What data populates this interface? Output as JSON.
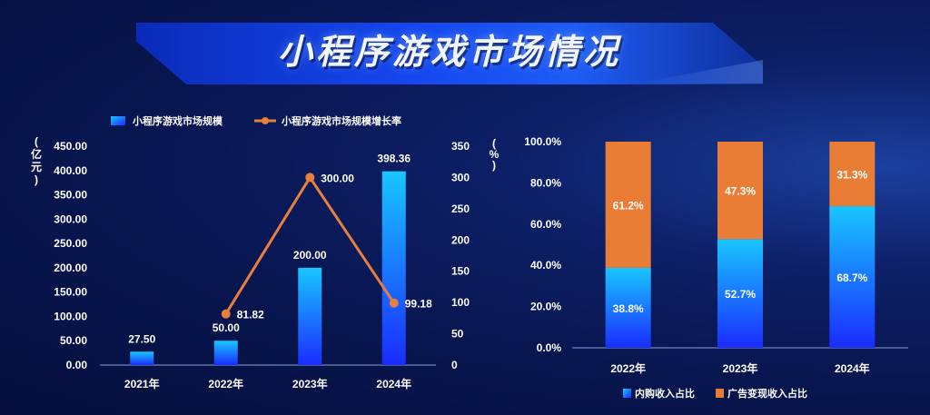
{
  "title": "小程序游戏市场情况",
  "colors": {
    "bar_top": "#19c6ff",
    "bar_bottom": "#1a2cff",
    "line": "#e87f3a",
    "orange": "#ea7d36",
    "axis": "#8aa0d8",
    "text": "#ffffff"
  },
  "chart_data": [
    {
      "type": "bar",
      "legend": [
        "小程序游戏市场规模",
        "小程序游戏市场规模增长率"
      ],
      "categories": [
        "2021年",
        "2022年",
        "2023年",
        "2024年"
      ],
      "y_left": {
        "unit_label": "(亿元)",
        "ticks": [
          "0.00",
          "50.00",
          "100.00",
          "150.00",
          "200.00",
          "250.00",
          "300.00",
          "350.00",
          "400.00",
          "450.00"
        ],
        "ylim": [
          0,
          450
        ]
      },
      "y_right": {
        "unit_label": "(%)",
        "ticks": [
          "0",
          "50",
          "100",
          "150",
          "200",
          "250",
          "300",
          "350"
        ],
        "ylim": [
          0,
          350
        ]
      },
      "series": [
        {
          "name": "小程序游戏市场规模",
          "type": "bar",
          "axis": "left",
          "values": [
            27.5,
            50.0,
            200.0,
            398.36
          ],
          "labels": [
            "27.50",
            "50.00",
            "200.00",
            "398.36"
          ]
        },
        {
          "name": "小程序游戏市场规模增长率",
          "type": "line",
          "axis": "right",
          "values": [
            null,
            81.82,
            300.0,
            99.18
          ],
          "labels": [
            "",
            "81.82",
            "300.00",
            "99.18"
          ]
        }
      ]
    },
    {
      "type": "bar",
      "stacked": true,
      "legend": [
        "内购收入占比",
        "广告变现收入占比"
      ],
      "categories": [
        "2022年",
        "2023年",
        "2024年"
      ],
      "y": {
        "unit_label": "(%)",
        "ticks": [
          "0.0%",
          "20.0%",
          "40.0%",
          "60.0%",
          "80.0%",
          "100.0%"
        ],
        "ylim": [
          0,
          100
        ]
      },
      "series": [
        {
          "name": "内购收入占比",
          "values": [
            38.8,
            52.7,
            68.7
          ],
          "labels": [
            "38.8%",
            "52.7%",
            "68.7%"
          ]
        },
        {
          "name": "广告变现收入占比",
          "values": [
            61.2,
            47.3,
            31.3
          ],
          "labels": [
            "61.2%",
            "47.3%",
            "31.3%"
          ]
        }
      ]
    }
  ]
}
